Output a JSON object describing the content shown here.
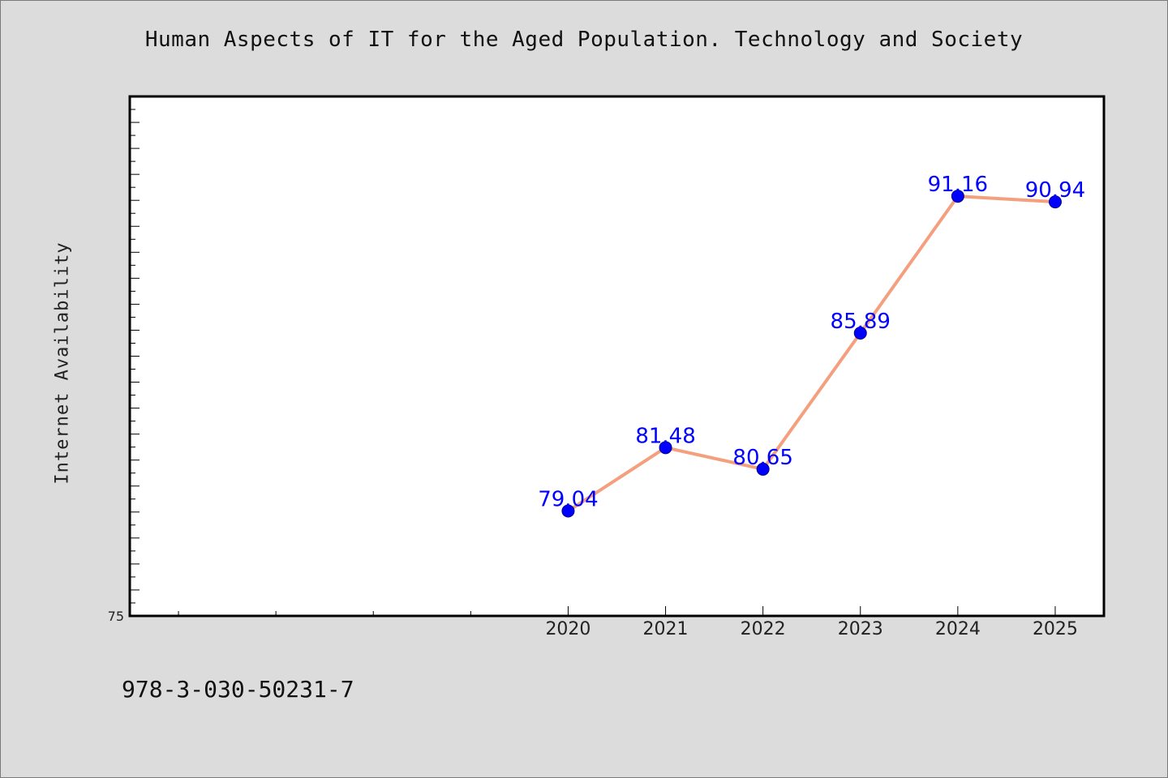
{
  "chart_data": {
    "type": "line",
    "title": "Human Aspects of IT for the Aged Population. Technology and Society",
    "ylabel": "Internet Availability",
    "xlabel": "",
    "categories": [
      "2020",
      "2021",
      "2022",
      "2023",
      "2024",
      "2025"
    ],
    "series": [
      {
        "values": [
          79.04,
          81.48,
          80.65,
          85.89,
          91.16,
          90.94
        ],
        "labels": [
          "79.04",
          "81.48",
          "80.65",
          "85.89",
          "91.16",
          "90.94"
        ]
      }
    ],
    "ylim": [
      75,
      95
    ],
    "y_min_label": "75",
    "x_slots": 10,
    "first_category_slot": 4,
    "grid": false,
    "line_color": "#f4a07e",
    "marker_color": "#0000ff",
    "label_color": "#0000ff"
  },
  "footer": {
    "isbn": "978-3-030-50231-7"
  }
}
